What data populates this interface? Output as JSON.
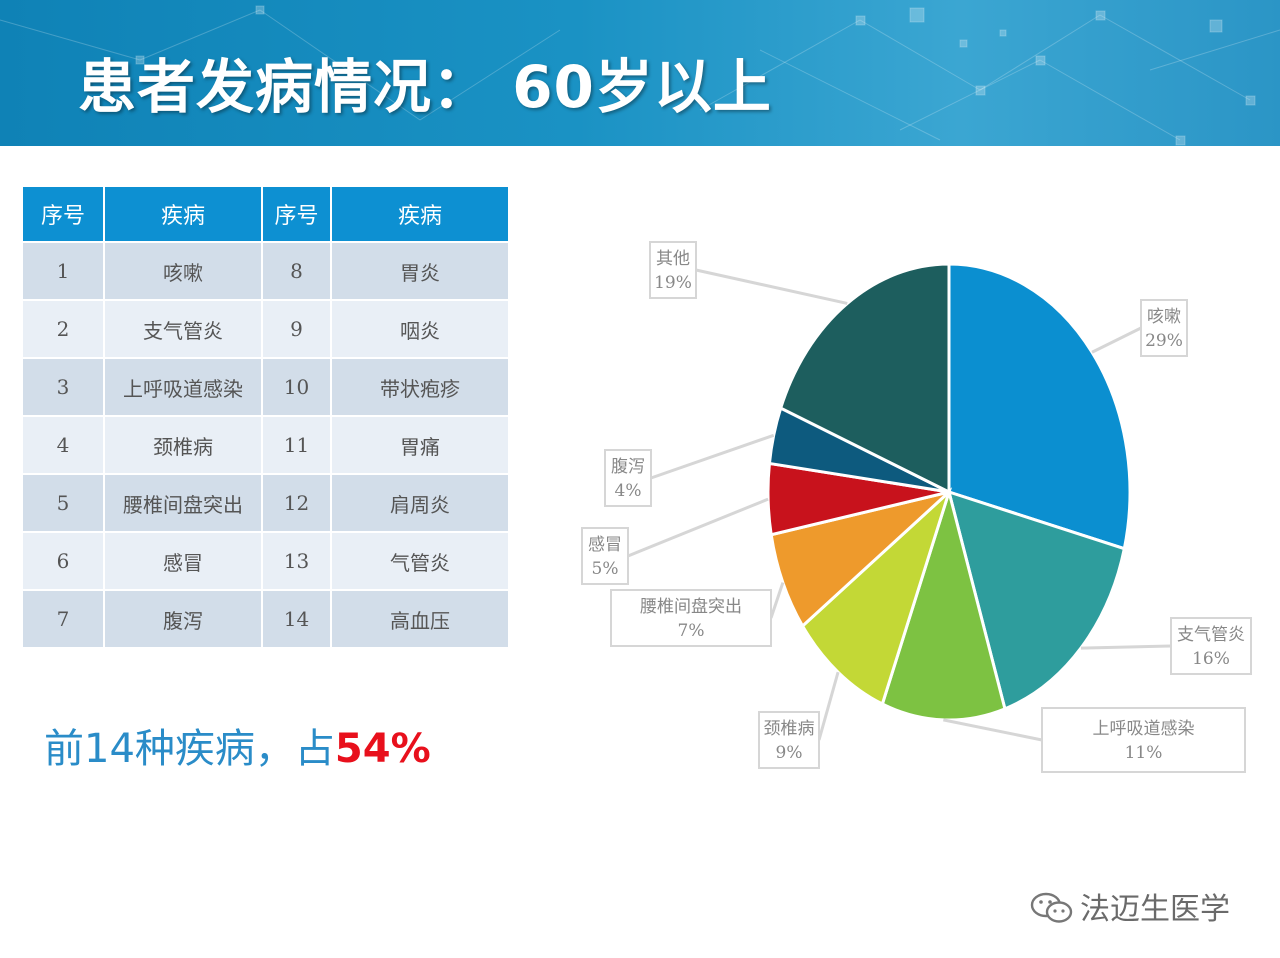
{
  "title": "患者发病情况： 60岁以上",
  "table": {
    "headers": [
      "序号",
      "疾病",
      "序号",
      "疾病"
    ],
    "rows": [
      [
        "1",
        "咳嗽",
        "8",
        "胃炎"
      ],
      [
        "2",
        "支气管炎",
        "9",
        "咽炎"
      ],
      [
        "3",
        "上呼吸道感染",
        "10",
        "带状疱疹"
      ],
      [
        "4",
        "颈椎病",
        "11",
        "胃痛"
      ],
      [
        "5",
        "腰椎间盘突出",
        "12",
        "肩周炎"
      ],
      [
        "6",
        "感冒",
        "13",
        "气管炎"
      ],
      [
        "7",
        "腹泻",
        "14",
        "高血压"
      ]
    ]
  },
  "summary": {
    "text": "前14种疾病，占",
    "pct": "54%"
  },
  "brand": {
    "name": "法迈生医学",
    "icon": "wechat-icon"
  },
  "chart_data": {
    "type": "pie",
    "slices": [
      {
        "name": "咳嗽",
        "label": "29%",
        "value": 29,
        "color": "#0b8fd0"
      },
      {
        "name": "支气管炎",
        "label": "16%",
        "value": 16,
        "color": "#2e9d9d"
      },
      {
        "name": "上呼吸道感染",
        "label": "11%",
        "value": 11,
        "color": "#7dc242"
      },
      {
        "name": "颈椎病",
        "label": "9%",
        "value": 9,
        "color": "#c3d836"
      },
      {
        "name": "腰椎间盘突出",
        "label": "7%",
        "value": 7,
        "color": "#ee9a2c"
      },
      {
        "name": "感冒",
        "label": "5%",
        "value": 5,
        "color": "#c8121c"
      },
      {
        "name": "腹泻",
        "label": "4%",
        "value": 4,
        "color": "#0d5a7e"
      },
      {
        "name": "其他",
        "label": "19%",
        "value": 19,
        "color": "#1d5e5e"
      }
    ]
  }
}
